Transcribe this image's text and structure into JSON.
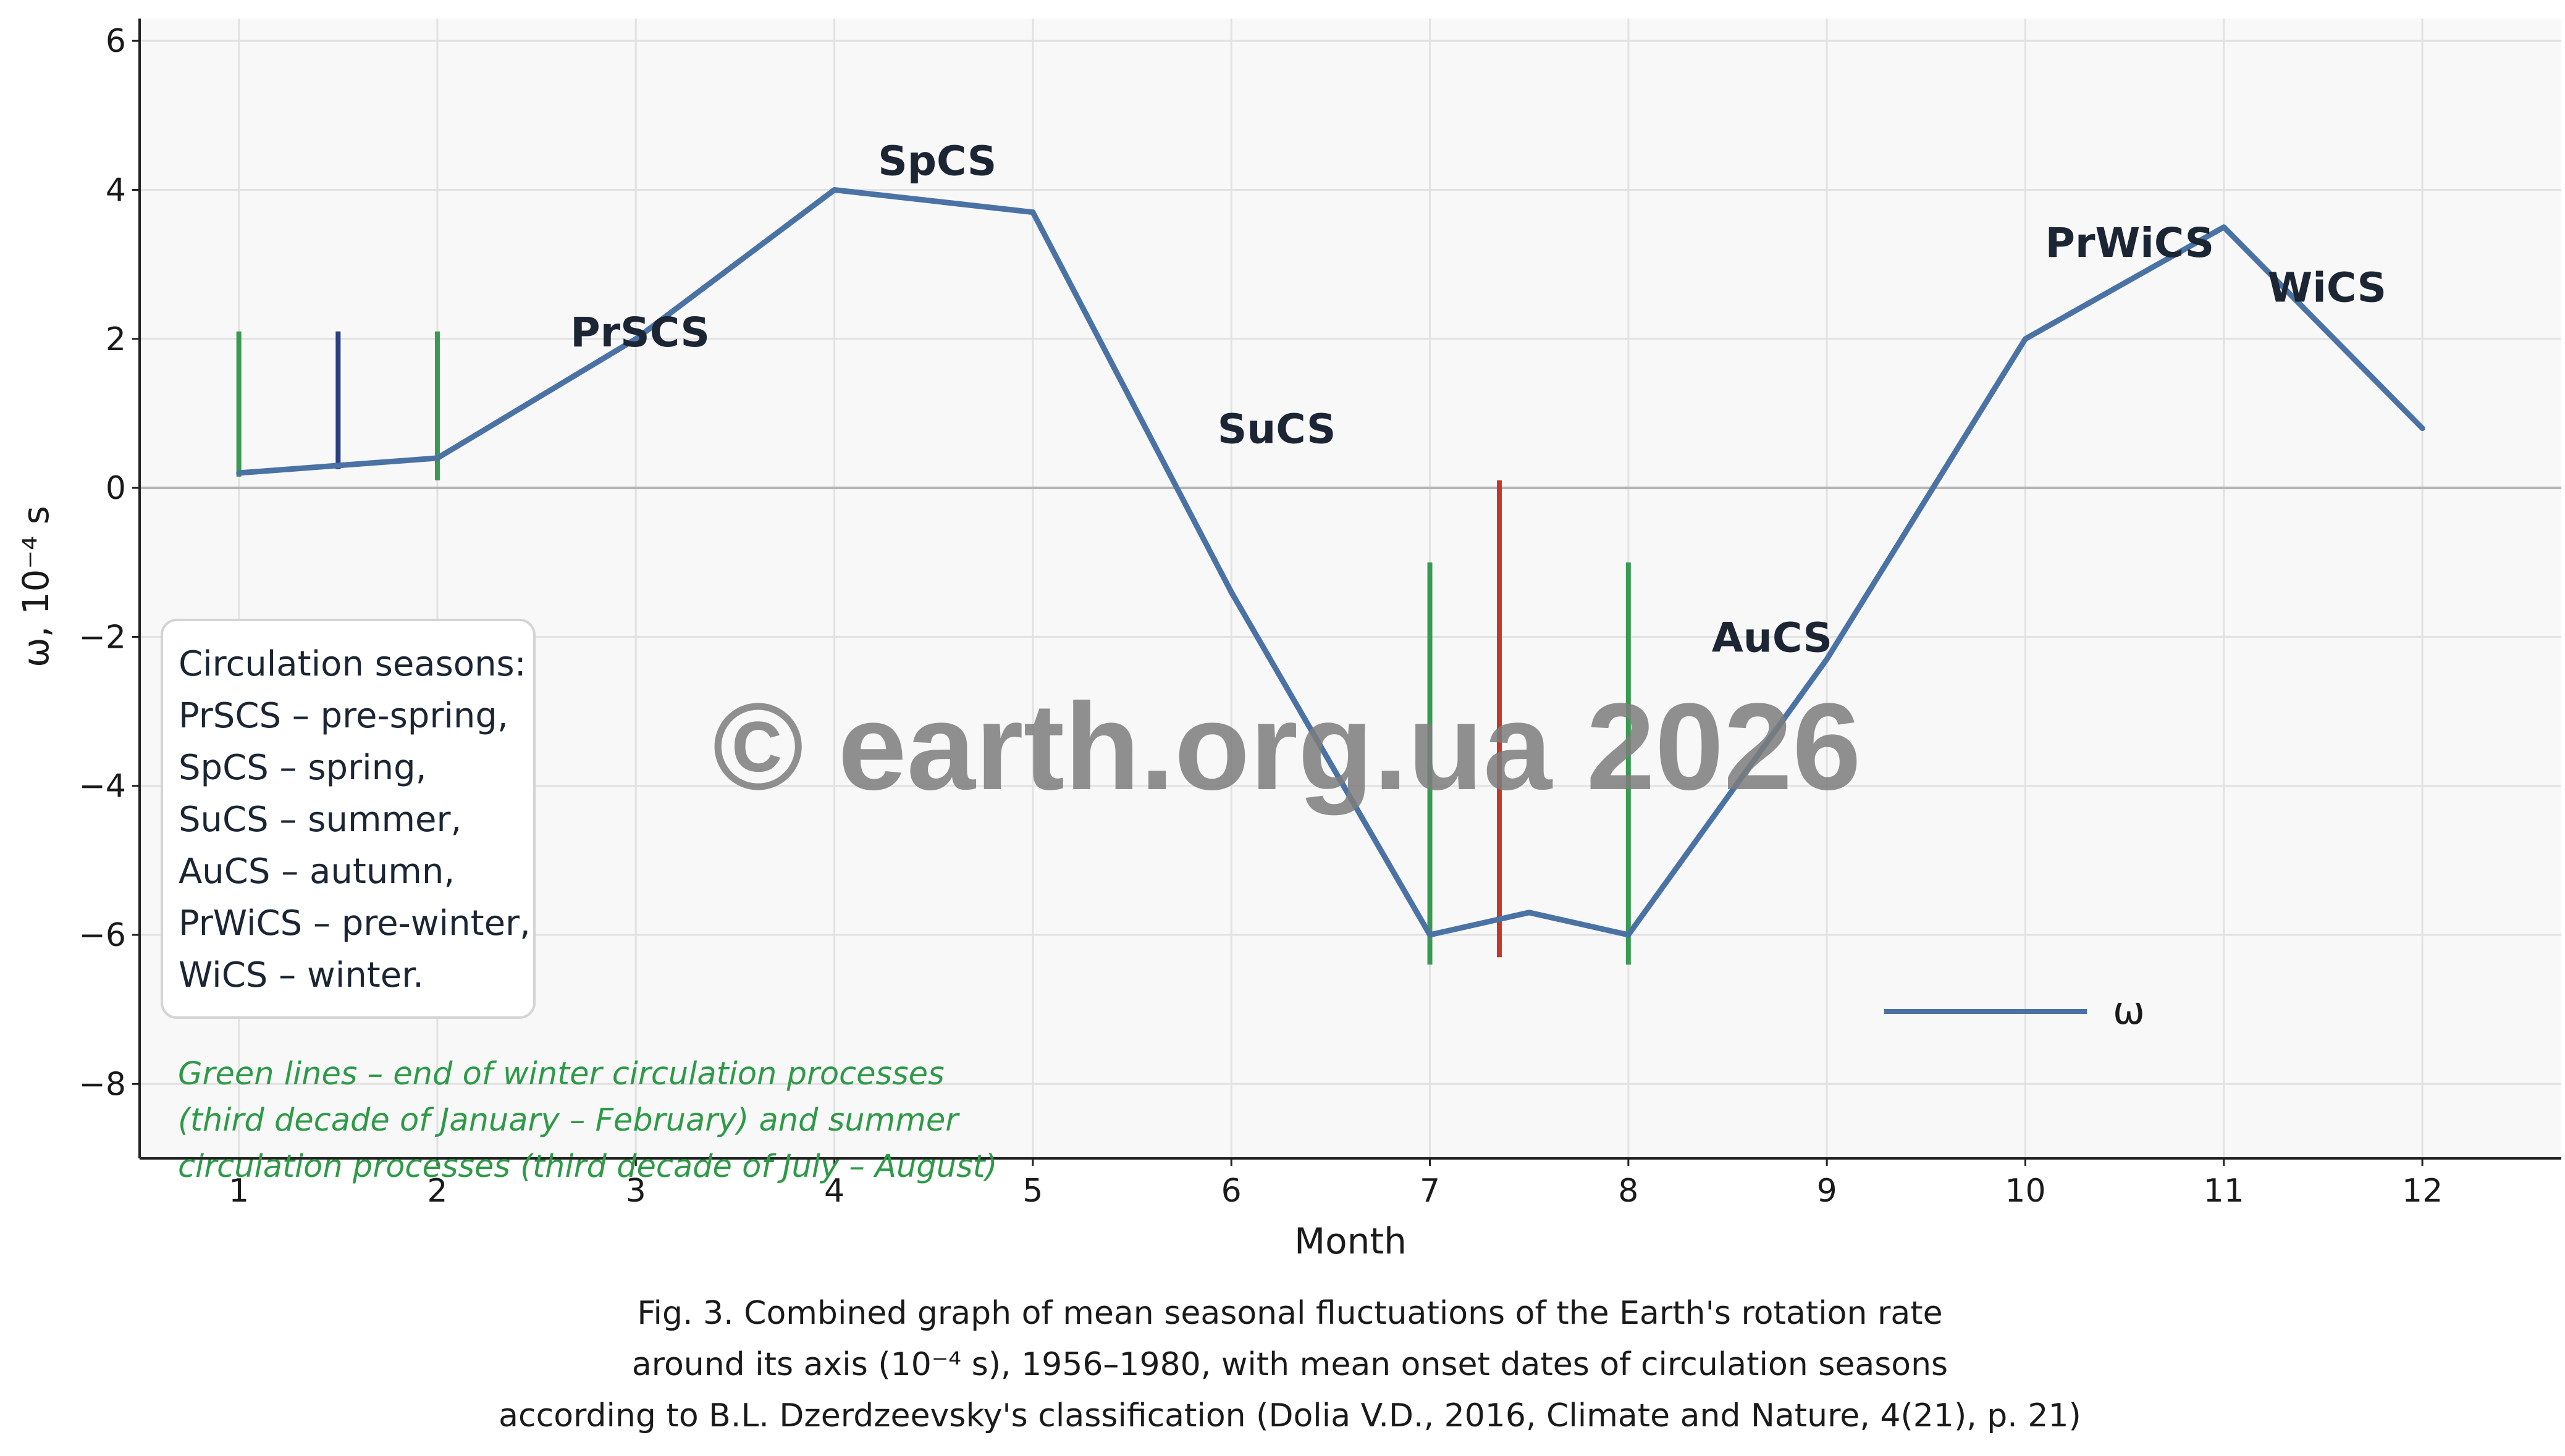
{
  "chart_data": {
    "type": "line",
    "xlabel": "Month",
    "ylabel": "ω, 10⁻⁴ s",
    "xlim": [
      0.5,
      12.7
    ],
    "ylim": [
      -9,
      6.3
    ],
    "x_ticks": [
      1,
      2,
      3,
      4,
      5,
      6,
      7,
      8,
      9,
      10,
      11,
      12
    ],
    "y_ticks": [
      6,
      4,
      2,
      0,
      -2,
      -4,
      -6,
      -8
    ],
    "y_tick_labels": [
      "6",
      "4",
      "2",
      "0",
      "−2",
      "−4",
      "−6",
      "−8"
    ],
    "grid": true,
    "series": [
      {
        "name": "ω",
        "color": "#4a72a4",
        "points": [
          {
            "x": 1,
            "y": 0.2
          },
          {
            "x": 1.5,
            "y": 0.3
          },
          {
            "x": 2,
            "y": 0.4
          },
          {
            "x": 3,
            "y": 2.0
          },
          {
            "x": 4,
            "y": 4.0
          },
          {
            "x": 5,
            "y": 3.7
          },
          {
            "x": 6,
            "y": -1.4
          },
          {
            "x": 7,
            "y": -6.0
          },
          {
            "x": 7.5,
            "y": -5.7
          },
          {
            "x": 8,
            "y": -6.0
          },
          {
            "x": 9,
            "y": -2.3
          },
          {
            "x": 10,
            "y": 2.0
          },
          {
            "x": 11,
            "y": 3.5
          },
          {
            "x": 12,
            "y": 0.8
          }
        ]
      }
    ],
    "vertical_markers": [
      {
        "x": 1,
        "y_from": 0.15,
        "y_to": 2.1,
        "color": "#3a9a52"
      },
      {
        "x": 1.5,
        "y_from": 0.25,
        "y_to": 2.1,
        "color": "#2b3f7e"
      },
      {
        "x": 2,
        "y_from": 0.1,
        "y_to": 2.1,
        "color": "#3a9a52"
      },
      {
        "x": 7,
        "y_from": -6.4,
        "y_to": -1.0,
        "color": "#3a9a52"
      },
      {
        "x": 7.35,
        "y_from": -6.3,
        "y_to": 0.1,
        "color": "#c0392b"
      },
      {
        "x": 8,
        "y_from": -6.4,
        "y_to": -1.0,
        "color": "#3a9a52"
      }
    ],
    "season_labels": [
      {
        "text": "PrSCS",
        "x": 2.67,
        "y": 1.9
      },
      {
        "text": "SpCS",
        "x": 4.22,
        "y": 4.2
      },
      {
        "text": "SuCS",
        "x": 5.93,
        "y": 0.6
      },
      {
        "text": "AuCS",
        "x": 8.42,
        "y": -2.2
      },
      {
        "text": "PrWiCS",
        "x": 10.1,
        "y": 3.1
      },
      {
        "text": "WiCS",
        "x": 11.22,
        "y": 2.5
      }
    ],
    "legend": {
      "label": "ω",
      "position": "lower-right"
    },
    "colors": {
      "line": "#4a72a4",
      "plot_bg": "#f8f8f8",
      "grid": "#e2e2e2",
      "zero_line": "#b5b5b5"
    }
  },
  "legend_box": {
    "lines": [
      "Circulation seasons:",
      "PrSCS – pre-spring,",
      "SpCS – spring,",
      "SuCS – summer,",
      "AuCS – autumn,",
      "PrWiCS – pre-winter,",
      "WiCS – winter."
    ]
  },
  "note": {
    "lines": [
      "Green lines – end of winter circulation processes",
      "(third decade of January – February) and summer",
      "circulation processes (third decade of July – August)"
    ],
    "color": "#2e9a48"
  },
  "watermark": "© earth.org.ua 2026",
  "caption": {
    "lines": [
      "Fig. 3. Combined graph of mean seasonal fluctuations of the Earth's rotation rate",
      "around its axis (10⁻⁴ s), 1956–1980, with mean onset dates of circulation seasons",
      "according to B.L. Dzerdzeevsky's classification (Dolia V.D., 2016, Climate and Nature, 4(21), p. 21)"
    ]
  }
}
